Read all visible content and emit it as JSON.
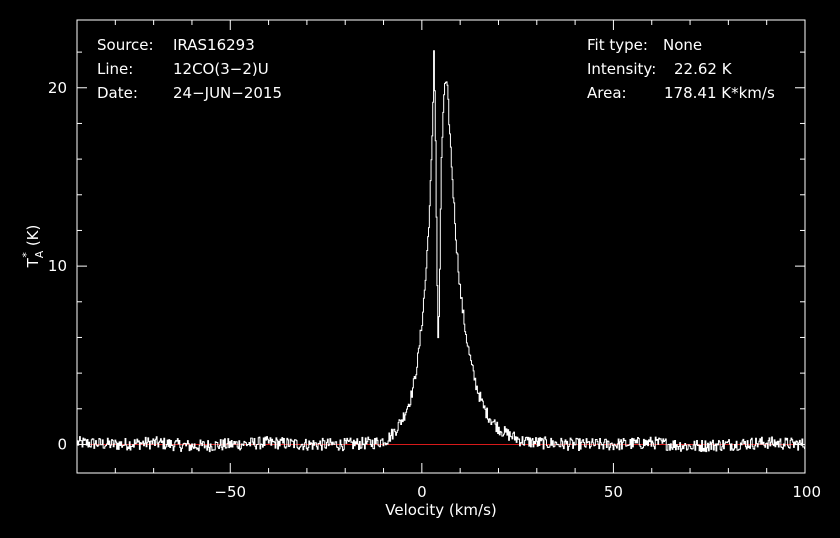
{
  "chart_data": {
    "type": "line",
    "xlabel": "Velocity (km/s)",
    "ylabel": {
      "main": "T",
      "sub": "A",
      "sup": "*",
      "unit": "(K)"
    },
    "xlim": [
      -90,
      100
    ],
    "ylim": [
      -1.6,
      23.8
    ],
    "x_ticks": [
      -50,
      0,
      50,
      100
    ],
    "x_tick_labels": [
      "−50",
      "0",
      "50",
      "100"
    ],
    "y_ticks": [
      0,
      10,
      20
    ],
    "y_tick_labels": [
      "0",
      "10",
      "20"
    ],
    "grid": false,
    "colors": {
      "background": "#000000",
      "frame": "#ffffff",
      "spectrum": "#ffffff",
      "baseline": "#d61a1a"
    },
    "baseline_value": 0,
    "series": [
      {
        "points": [
          [
            -90,
            0.1
          ],
          [
            -80,
            0.0
          ],
          [
            -70,
            0.1
          ],
          [
            -60,
            -0.1
          ],
          [
            -50,
            0.0
          ],
          [
            -40,
            0.1
          ],
          [
            -30,
            0.0
          ],
          [
            -20,
            0.0
          ],
          [
            -12,
            0.1
          ],
          [
            -9,
            0.3
          ],
          [
            -7,
            0.8
          ],
          [
            -5,
            1.5
          ],
          [
            -3,
            2.6
          ],
          [
            -2,
            3.6
          ],
          [
            -1,
            5.0
          ],
          [
            0,
            7.0
          ],
          [
            1,
            9.6
          ],
          [
            2,
            13.5
          ],
          [
            2.7,
            17.5
          ],
          [
            3.1,
            22.6
          ],
          [
            3.5,
            17.0
          ],
          [
            3.9,
            9.5
          ],
          [
            4.2,
            5.2
          ],
          [
            4.5,
            8.5
          ],
          [
            5.0,
            15.5
          ],
          [
            5.6,
            19.5
          ],
          [
            6.1,
            20.3
          ],
          [
            6.6,
            19.8
          ],
          [
            7.2,
            17.5
          ],
          [
            8,
            14.5
          ],
          [
            9,
            11.0
          ],
          [
            10,
            8.5
          ],
          [
            11,
            6.8
          ],
          [
            12,
            5.4
          ],
          [
            13,
            4.3
          ],
          [
            14,
            3.4
          ],
          [
            15,
            2.7
          ],
          [
            16,
            2.1
          ],
          [
            17,
            1.7
          ],
          [
            18,
            1.4
          ],
          [
            20,
            0.9
          ],
          [
            22,
            0.6
          ],
          [
            24,
            0.4
          ],
          [
            26,
            0.2
          ],
          [
            30,
            0.1
          ],
          [
            40,
            0.0
          ],
          [
            50,
            0.0
          ],
          [
            60,
            0.1
          ],
          [
            70,
            -0.1
          ],
          [
            80,
            0.0
          ],
          [
            90,
            0.1
          ],
          [
            100,
            0.0
          ]
        ]
      }
    ],
    "annotations_left": [
      {
        "key": "Source:",
        "value": "IRAS16293"
      },
      {
        "key": "Line:",
        "value": "12CO(3−2)U"
      },
      {
        "key": "Date:",
        "value": "24−JUN−2015"
      }
    ],
    "annotations_right": [
      {
        "key": "Fit type:",
        "value": "None"
      },
      {
        "key": "Intensity:",
        "value": "22.62 K"
      },
      {
        "key": "Area:",
        "value": "178.41 K*km/s"
      }
    ]
  }
}
